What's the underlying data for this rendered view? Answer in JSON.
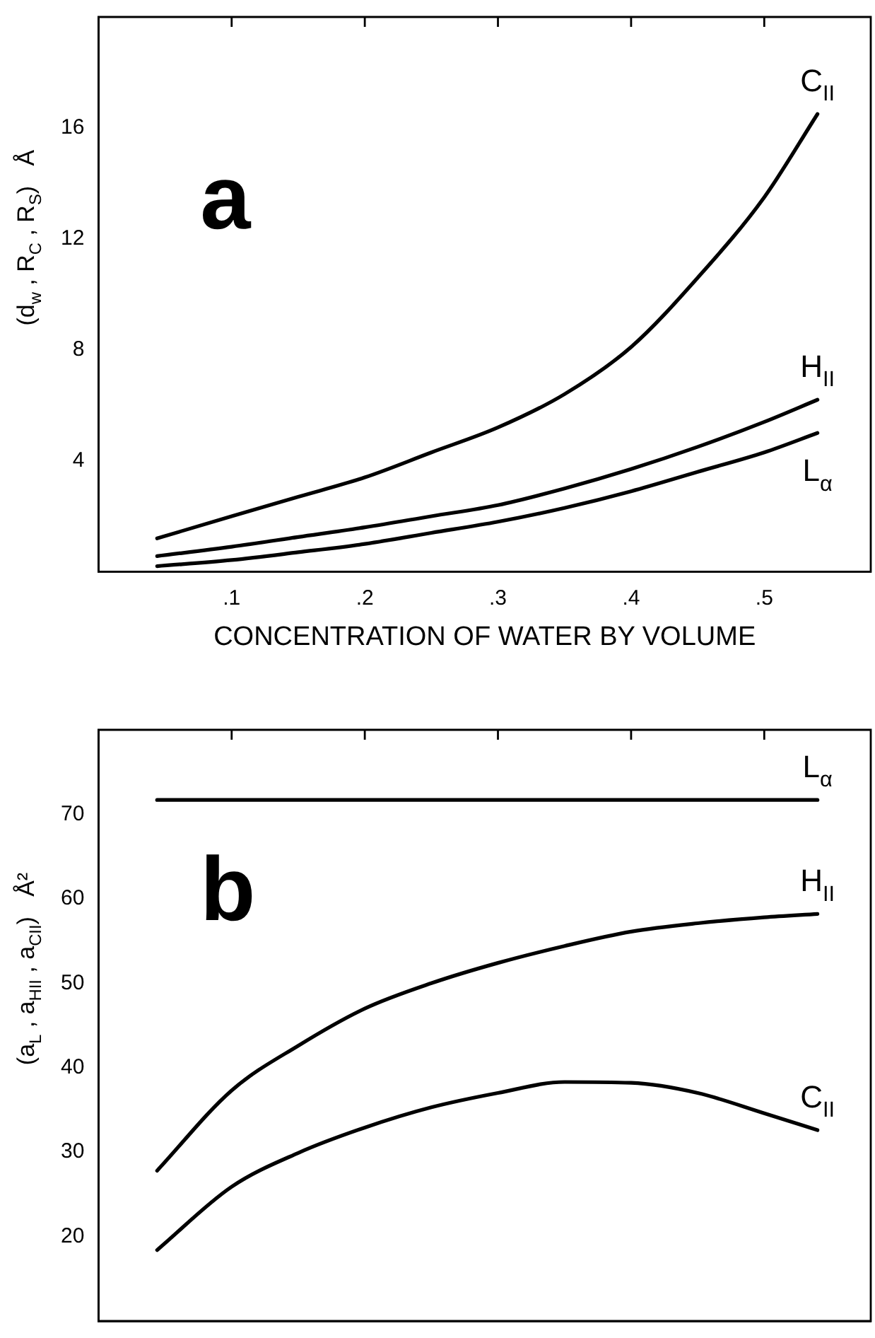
{
  "chart_data": [
    {
      "type": "line",
      "xlabel": "CONCENTRATION OF WATER BY VOLUME",
      "ylabel": "(d$_{w}$ , R$_{C}$ , R$_{S}$)   Å",
      "annotations": [
        "a"
      ],
      "xlim": [
        0,
        0.58
      ],
      "xticks": [
        {
          "value": 0.1,
          "label": ".1"
        },
        {
          "value": 0.2,
          "label": ".2"
        },
        {
          "value": 0.3,
          "label": ".3"
        },
        {
          "value": 0.4,
          "label": ".4"
        },
        {
          "value": 0.5,
          "label": ".5"
        }
      ],
      "ylim": [
        0,
        20
      ],
      "yticks": [
        4,
        8,
        12,
        16
      ],
      "grid": false,
      "legend": false,
      "marker": "none",
      "line_style": "solid",
      "x": [
        0.044,
        0.1,
        0.15,
        0.2,
        0.25,
        0.3,
        0.35,
        0.4,
        0.45,
        0.5,
        0.54
      ],
      "series": [
        {
          "name": "C$_{II}$",
          "color": "#000000",
          "values": [
            1.2,
            2.0,
            2.7,
            3.4,
            4.3,
            5.2,
            6.4,
            8.1,
            10.6,
            13.5,
            16.5
          ]
        },
        {
          "name": "H$_{II}$",
          "color": "#000000",
          "values": [
            0.56,
            0.9,
            1.25,
            1.6,
            2.0,
            2.4,
            3.0,
            3.7,
            4.5,
            5.4,
            6.2
          ]
        },
        {
          "name": "L$_{α}$",
          "color": "#000000",
          "values": [
            0.2,
            0.42,
            0.7,
            1.0,
            1.4,
            1.8,
            2.3,
            2.9,
            3.6,
            4.3,
            5.0
          ]
        }
      ]
    },
    {
      "type": "line",
      "ylabel": "(a$_{L}$ , a$_{HII}$ , a$_{CII}$)   Å²",
      "annotations": [
        "b"
      ],
      "tick_labels": "y",
      "xlim": [
        0,
        0.58
      ],
      "xticks": [
        {
          "value": 0.1,
          "label": null
        },
        {
          "value": 0.2,
          "label": null
        },
        {
          "value": 0.3,
          "label": null
        },
        {
          "value": 0.4,
          "label": null
        },
        {
          "value": 0.5,
          "label": null
        }
      ],
      "ylim": [
        10,
        80
      ],
      "yticks": [
        20,
        30,
        40,
        50,
        60,
        70
      ],
      "grid": false,
      "legend": false,
      "marker": "none",
      "line_style": "solid",
      "x": [
        0.044,
        0.1,
        0.15,
        0.2,
        0.25,
        0.3,
        0.35,
        0.4,
        0.45,
        0.5,
        0.54
      ],
      "series": [
        {
          "name": "L$_{α}$",
          "color": "#000000",
          "values": [
            71.7,
            71.7,
            71.7,
            71.7,
            71.7,
            71.7,
            71.7,
            71.7,
            71.7,
            71.7,
            71.7
          ]
        },
        {
          "name": "H$_{II}$",
          "color": "#000000",
          "values": [
            27.8,
            37.3,
            42.6,
            47.0,
            50.0,
            52.4,
            54.4,
            56.1,
            57.1,
            57.8,
            58.2
          ]
        },
        {
          "name": "C$_{II}$",
          "color": "#000000",
          "values": [
            18.4,
            25.9,
            29.9,
            32.9,
            35.3,
            37.0,
            38.3,
            38.2,
            37.0,
            34.6,
            32.6
          ]
        }
      ]
    }
  ]
}
